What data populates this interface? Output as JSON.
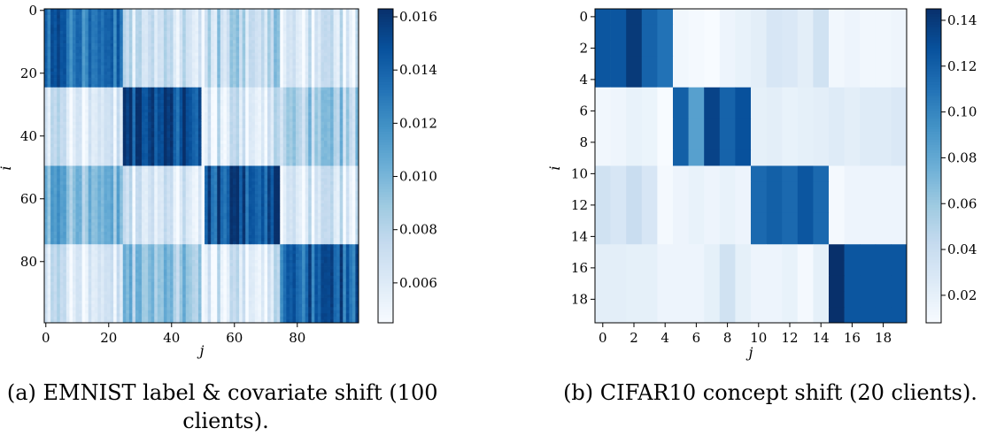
{
  "chart_data": [
    {
      "type": "heatmap",
      "n": 100,
      "xlabel": "j",
      "ylabel": "i",
      "xticks": [
        "0",
        "20",
        "40",
        "60",
        "80"
      ],
      "yticks": [
        "0",
        "20",
        "40",
        "60",
        "80"
      ],
      "xtick_values": [
        0,
        20,
        40,
        60,
        80
      ],
      "ytick_values": [
        0,
        20,
        40,
        60,
        80
      ],
      "colorbar": {
        "colormap": "Blues",
        "vmin": 0.0045,
        "vmax": 0.0163,
        "ticks": [
          "0.006",
          "0.008",
          "0.010",
          "0.012",
          "0.014",
          "0.016"
        ],
        "tick_values": [
          0.006,
          0.008,
          0.01,
          0.012,
          0.014,
          0.016
        ]
      },
      "groups": [
        [
          0,
          25
        ],
        [
          25,
          50
        ],
        [
          50,
          75
        ],
        [
          75,
          100
        ]
      ],
      "group_values": [
        [
          0.0135,
          0.0068,
          0.0078,
          0.0062
        ],
        [
          0.0063,
          0.015,
          0.0063,
          0.0085
        ],
        [
          0.01,
          0.0062,
          0.0148,
          0.0062
        ],
        [
          0.0063,
          0.0092,
          0.0062,
          0.014
        ]
      ],
      "column_pattern": "column-wise variation within blocks; column 50 is near-white",
      "caption": "(a) EMNIST label & covariate shift (100 clients)."
    },
    {
      "type": "heatmap",
      "n": 20,
      "xlabel": "j",
      "ylabel": "i",
      "xticks": [
        "0",
        "2",
        "4",
        "6",
        "8",
        "10",
        "12",
        "14",
        "16",
        "18"
      ],
      "yticks": [
        "0",
        "2",
        "4",
        "6",
        "8",
        "10",
        "12",
        "14",
        "16",
        "18"
      ],
      "xtick_values": [
        0,
        2,
        4,
        6,
        8,
        10,
        12,
        14,
        16,
        18
      ],
      "ytick_values": [
        0,
        2,
        4,
        6,
        8,
        10,
        12,
        14,
        16,
        18
      ],
      "colorbar": {
        "colormap": "Blues",
        "vmin": 0.008,
        "vmax": 0.145,
        "ticks": [
          "0.02",
          "0.04",
          "0.06",
          "0.08",
          "0.10",
          "0.12",
          "0.14"
        ],
        "tick_values": [
          0.02,
          0.04,
          0.06,
          0.08,
          0.1,
          0.12,
          0.14
        ]
      },
      "columns_by_group": [
        [
          0.125,
          0.125,
          0.14,
          0.118,
          0.11,
          0.012,
          0.01,
          0.008,
          0.015,
          0.018,
          0.022,
          0.03,
          0.028,
          0.022,
          0.035,
          0.012,
          0.015,
          0.012,
          0.012,
          0.014
        ],
        [
          0.012,
          0.014,
          0.018,
          0.016,
          0.008,
          0.12,
          0.085,
          0.135,
          0.118,
          0.128,
          0.02,
          0.022,
          0.018,
          0.02,
          0.022,
          0.025,
          0.022,
          0.025,
          0.025,
          0.028
        ],
        [
          0.035,
          0.03,
          0.04,
          0.03,
          0.01,
          0.015,
          0.018,
          0.015,
          0.018,
          0.015,
          0.115,
          0.12,
          0.115,
          0.125,
          0.115,
          0.01,
          0.015,
          0.015,
          0.015,
          0.015
        ],
        [
          0.022,
          0.022,
          0.02,
          0.02,
          0.015,
          0.015,
          0.015,
          0.02,
          0.035,
          0.02,
          0.015,
          0.015,
          0.018,
          0.01,
          0.02,
          0.145,
          0.125,
          0.125,
          0.125,
          0.125
        ]
      ],
      "caption": "(b) CIFAR10 concept shift (20 clients)."
    }
  ]
}
